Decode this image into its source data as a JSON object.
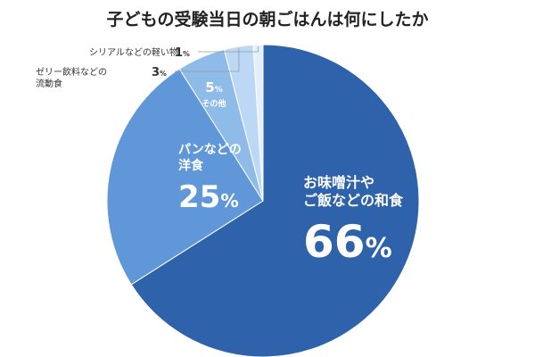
{
  "chart_data": {
    "type": "pie",
    "title": "子どもの受験当日の朝ごはんは何にしたか",
    "unit": "%",
    "slices": [
      {
        "label_lines": [
          "お味噌汁や",
          "ご飯などの和食"
        ],
        "value": 66,
        "color": "#2e62aa"
      },
      {
        "label_lines": [
          "パンなどの",
          "洋食"
        ],
        "value": 25,
        "color": "#5f97d9"
      },
      {
        "label_lines": [
          "その他"
        ],
        "value": 5,
        "color": "#8fbbe9"
      },
      {
        "label_lines": [
          "ゼリー飲料などの",
          "流動食"
        ],
        "value": 3,
        "color": "#bcd8f4"
      },
      {
        "label_lines": [
          "シリアルなどの軽い物"
        ],
        "value": 1,
        "color": "#e3effb"
      }
    ]
  }
}
